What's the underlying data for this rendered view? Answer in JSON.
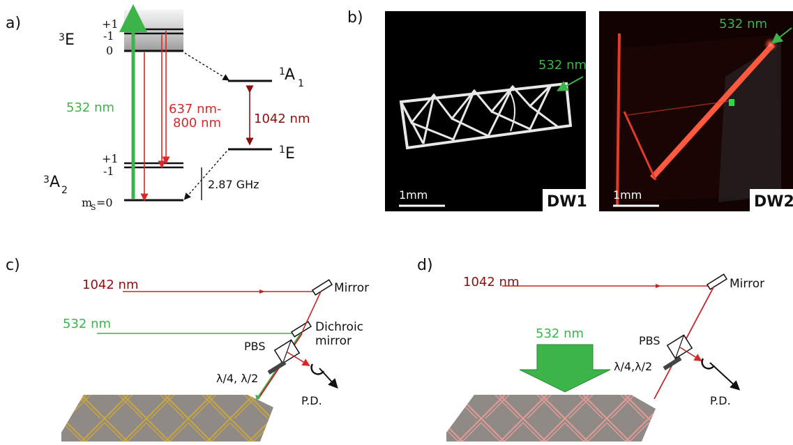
{
  "panels": {
    "a": "a)",
    "b": "b)",
    "c": "c)",
    "d": "d)"
  },
  "energy_diagram": {
    "excited_triplet": {
      "label": "E",
      "sup": "3",
      "levels": [
        "+1",
        "-1",
        "0"
      ]
    },
    "ground_triplet": {
      "label": "A",
      "sup": "3",
      "sub": "2",
      "levels": [
        "+1",
        "-1"
      ],
      "ms_label": "m",
      "ms_sub": "S",
      "ms_value": "=0"
    },
    "singlet_upper": {
      "label": "A",
      "sup": "1",
      "sub": "1"
    },
    "singlet_lower": {
      "label": "E",
      "sup": "1"
    },
    "pump_label": "532 nm",
    "fluorescence_label_1": "637 nm-",
    "fluorescence_label_2": "800 nm",
    "ir_label": "1042 nm",
    "splitting_label": "2.87 GHz",
    "colors": {
      "green": "#3cb44a",
      "red": "#d42a2a",
      "dark_red": "#8a0f0f"
    }
  },
  "micrographs": {
    "dw1": {
      "tag": "DW1",
      "scale_label": "1mm",
      "laser_label": "532 nm"
    },
    "dw2": {
      "tag": "DW2",
      "scale_label": "1mm",
      "laser_label": "532 nm"
    }
  },
  "setup_c": {
    "ir_label": "1042 nm",
    "green_label": "532 nm",
    "mirror_label": "Mirror",
    "dichroic_label_1": "Dichroic",
    "dichroic_label_2": "mirror",
    "pbs_label": "PBS",
    "waveplate_label": "λ/4, λ/2",
    "pd_label": "P.D."
  },
  "setup_d": {
    "ir_label": "1042 nm",
    "green_label": "532 nm",
    "mirror_label": "Mirror",
    "pbs_label": "PBS",
    "waveplate_label": "λ/4,λ/2",
    "pd_label": "P.D."
  }
}
